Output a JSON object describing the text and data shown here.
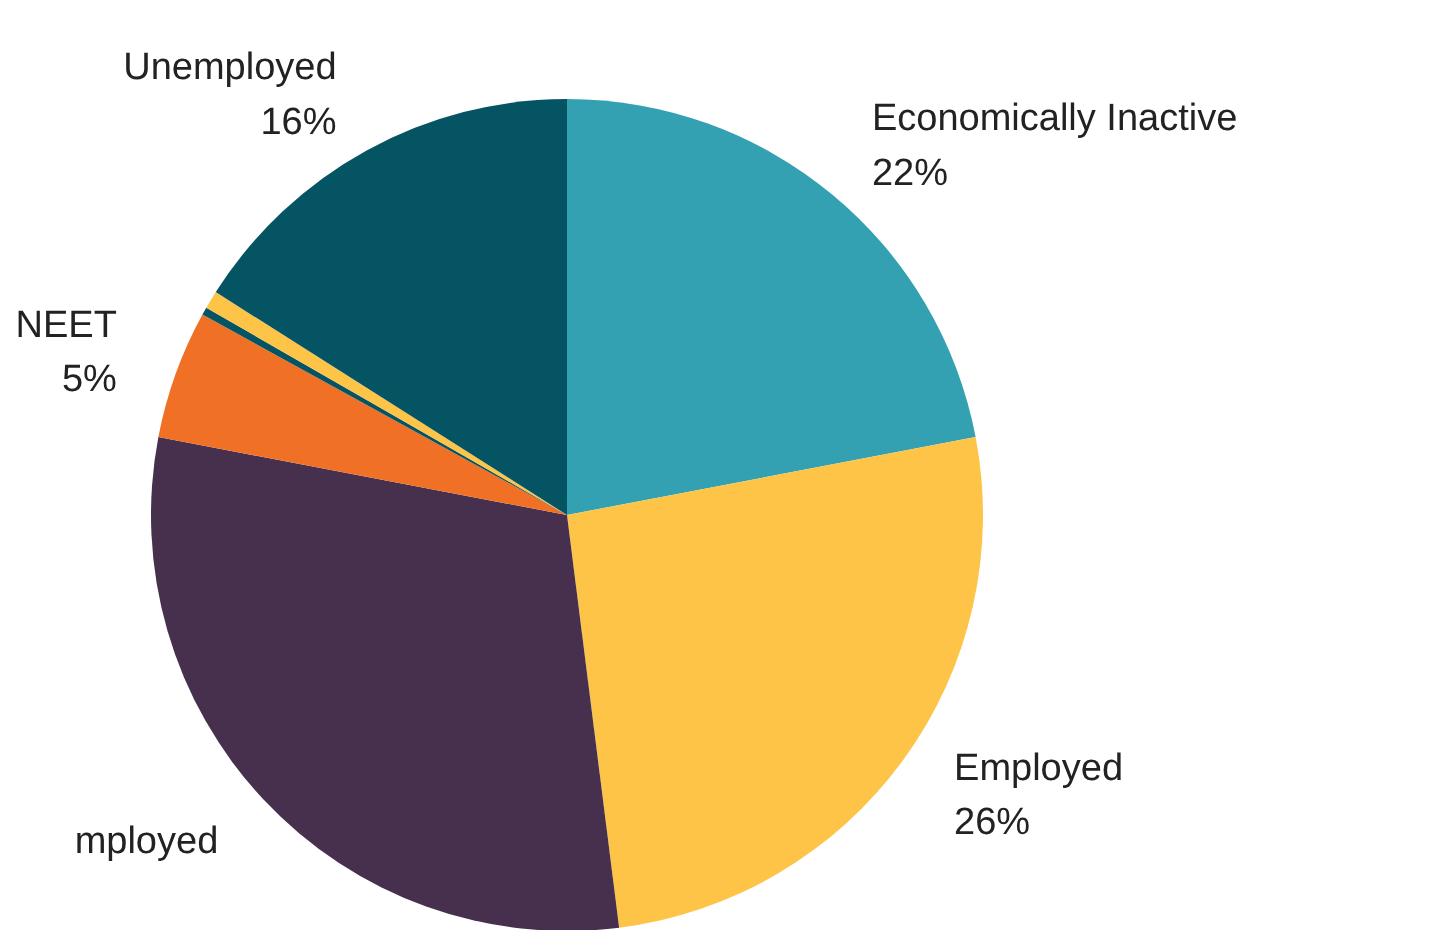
{
  "chart_data": {
    "type": "pie",
    "categories": [
      "Economically Inactive",
      "Employed",
      "mployed",
      "NEET",
      null,
      null,
      "Unemployed"
    ],
    "values": [
      22,
      26,
      30,
      5,
      0.3,
      0.7,
      16
    ],
    "value_labels": [
      "22%",
      "26%",
      null,
      "5%",
      null,
      null,
      "16%"
    ],
    "colors": [
      "#33a1b2",
      "#fdc448",
      "#46304d",
      "#f07126",
      "#045464",
      "#fdc448",
      "#045464"
    ]
  }
}
